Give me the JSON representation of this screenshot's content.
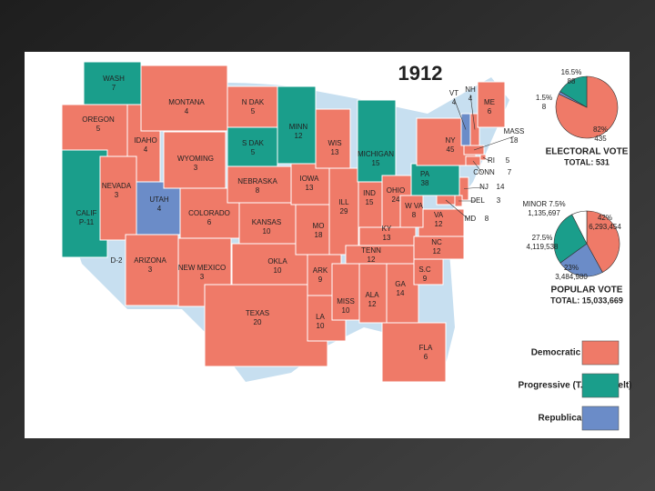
{
  "title": "1912",
  "states": [
    {
      "name": "WASH",
      "votes": 7,
      "color": "#1a9e8b"
    },
    {
      "name": "OREGON",
      "votes": 5,
      "color": "#ef7a68"
    },
    {
      "name": "CALIF",
      "votes": "P-11",
      "color": "#1a9e8b"
    },
    {
      "name": "IDAHO",
      "votes": 4,
      "color": "#ef7a68"
    },
    {
      "name": "NEVADA",
      "votes": 3,
      "color": "#ef7a68"
    },
    {
      "name": "UTAH",
      "votes": 4,
      "color": "#6b8cc8"
    },
    {
      "name": "ARIZONA",
      "votes": 3,
      "color": "#ef7a68"
    },
    {
      "name": "MONTANA",
      "votes": 4,
      "color": "#ef7a68"
    },
    {
      "name": "WYOMING",
      "votes": 3,
      "color": "#ef7a68"
    },
    {
      "name": "COLORADO",
      "votes": 6,
      "color": "#ef7a68"
    },
    {
      "name": "NEW MEXICO",
      "votes": 3,
      "color": "#ef7a68"
    },
    {
      "name": "N DAK",
      "votes": 5,
      "color": "#ef7a68"
    },
    {
      "name": "S DAK",
      "votes": 5,
      "color": "#1a9e8b"
    },
    {
      "name": "NEBRASKA",
      "votes": 8,
      "color": "#ef7a68"
    },
    {
      "name": "KANSAS",
      "votes": 10,
      "color": "#ef7a68"
    },
    {
      "name": "OKLA",
      "votes": 10,
      "color": "#ef7a68"
    },
    {
      "name": "TEXAS",
      "votes": 20,
      "color": "#ef7a68"
    },
    {
      "name": "MINN",
      "votes": 12,
      "color": "#1a9e8b"
    },
    {
      "name": "IOWA",
      "votes": 13,
      "color": "#ef7a68"
    },
    {
      "name": "MO",
      "votes": 18,
      "color": "#ef7a68"
    },
    {
      "name": "ARK",
      "votes": 9,
      "color": "#ef7a68"
    },
    {
      "name": "LA",
      "votes": 10,
      "color": "#ef7a68"
    },
    {
      "name": "WIS",
      "votes": 13,
      "color": "#ef7a68"
    },
    {
      "name": "ILL",
      "votes": 29,
      "color": "#ef7a68"
    },
    {
      "name": "MICHIGAN",
      "votes": 15,
      "color": "#1a9e8b"
    },
    {
      "name": "IND",
      "votes": 15,
      "color": "#ef7a68"
    },
    {
      "name": "OHIO",
      "votes": 24,
      "color": "#ef7a68"
    },
    {
      "name": "KY",
      "votes": 13,
      "color": "#ef7a68"
    },
    {
      "name": "TENN",
      "votes": 12,
      "color": "#ef7a68"
    },
    {
      "name": "MISS",
      "votes": 10,
      "color": "#ef7a68"
    },
    {
      "name": "ALA",
      "votes": 12,
      "color": "#ef7a68"
    },
    {
      "name": "GA",
      "votes": 14,
      "color": "#ef7a68"
    },
    {
      "name": "FLA",
      "votes": 6,
      "color": "#ef7a68"
    },
    {
      "name": "S.C",
      "votes": 9,
      "color": "#ef7a68"
    },
    {
      "name": "NC",
      "votes": 12,
      "color": "#ef7a68"
    },
    {
      "name": "VA",
      "votes": 12,
      "color": "#ef7a68"
    },
    {
      "name": "W VA",
      "votes": 8,
      "color": "#ef7a68"
    },
    {
      "name": "PA",
      "votes": 38,
      "color": "#1a9e8b"
    },
    {
      "name": "NY",
      "votes": 45,
      "color": "#ef7a68"
    },
    {
      "name": "VT",
      "votes": 4,
      "color": "#6b8cc8"
    },
    {
      "name": "NH",
      "votes": 4,
      "color": "#ef7a68"
    },
    {
      "name": "ME",
      "votes": 6,
      "color": "#ef7a68"
    },
    {
      "name": "MASS",
      "votes": 18,
      "color": "#ef7a68"
    },
    {
      "name": "RI",
      "votes": 5,
      "color": "#ef7a68"
    },
    {
      "name": "CONN",
      "votes": 7,
      "color": "#ef7a68"
    },
    {
      "name": "NJ",
      "votes": 14,
      "color": "#ef7a68"
    },
    {
      "name": "DEL",
      "votes": 3,
      "color": "#ef7a68"
    },
    {
      "name": "MD",
      "votes": 8,
      "color": "#ef7a68"
    }
  ],
  "split_label": "D-2",
  "pies": [
    {
      "title": "ELECTORAL VOTE",
      "total": "TOTAL: 531",
      "slices": [
        {
          "percent": {
            "value": 82,
            "label": "82%"
          },
          "count": 435,
          "color": "#ef7a68"
        },
        {
          "percent": {
            "value": 1.5,
            "label": "1.5%"
          },
          "count": 8,
          "color": "#6b8cc8"
        },
        {
          "percent": {
            "value": 16.5,
            "label": "16.5%"
          },
          "count": 88,
          "color": "#1a9e8b"
        }
      ]
    },
    {
      "title": "POPULAR VOTE",
      "total": "TOTAL: 15,033,669",
      "slices": [
        {
          "percent": {
            "value": 42,
            "label": "42%"
          },
          "count": "6,293,454",
          "color": "#ef7a68"
        },
        {
          "percent": {
            "value": 23,
            "label": "23%"
          },
          "count": "3,484,980",
          "color": "#6b8cc8"
        },
        {
          "percent": {
            "value": 27.5,
            "label": "27.5%"
          },
          "count": "4,119,538",
          "color": "#1a9e8b"
        },
        {
          "percent": {
            "value": 7.5,
            "label": "MINOR 7.5%"
          },
          "count": "1,135,697",
          "color": "#ffffff"
        }
      ]
    }
  ],
  "legend": [
    {
      "label": "Democratic (Wilson)",
      "color": "#ef7a68"
    },
    {
      "label": "Progressive (T. Roosevelt)",
      "color": "#1a9e8b"
    },
    {
      "label": "Republican (Taft)",
      "color": "#6b8cc8"
    }
  ]
}
